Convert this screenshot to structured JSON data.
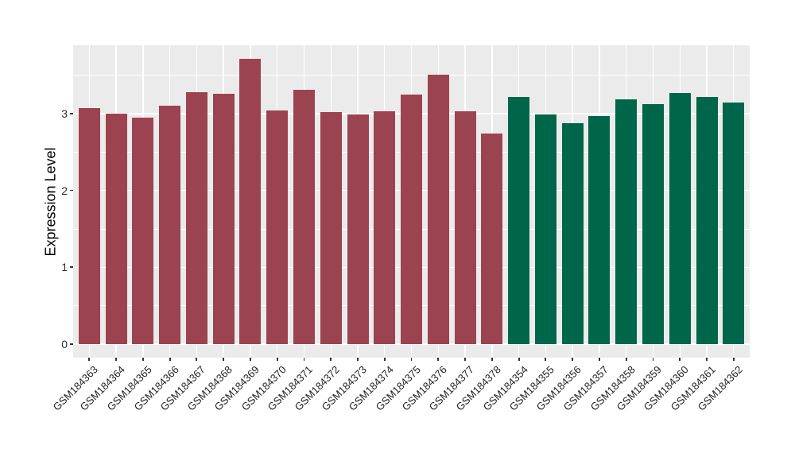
{
  "chart_data": {
    "type": "bar",
    "title": "",
    "xlabel": "",
    "ylabel": "Expression Level",
    "ylim": [
      0,
      3.89
    ],
    "yticks": [
      0,
      1,
      2,
      3
    ],
    "yticks_minor": [
      0.5,
      1.5,
      2.5,
      3.5
    ],
    "grid": "white major and minor gridlines on gray panel",
    "legend": "none",
    "panel_background": "#EBEBEB",
    "grid_color": "#FFFFFF",
    "group_colors": [
      "#9C4351",
      "#00664A"
    ],
    "categories": [
      "GSM184363",
      "GSM184364",
      "GSM184365",
      "GSM184366",
      "GSM184367",
      "GSM184368",
      "GSM184369",
      "GSM184370",
      "GSM184371",
      "GSM184372",
      "GSM184373",
      "GSM184374",
      "GSM184375",
      "GSM184376",
      "GSM184377",
      "GSM184378",
      "GSM184354",
      "GSM184355",
      "GSM184356",
      "GSM184357",
      "GSM184358",
      "GSM184359",
      "GSM184360",
      "GSM184361",
      "GSM184362"
    ],
    "values": [
      3.07,
      3.0,
      2.95,
      3.1,
      3.28,
      3.26,
      3.71,
      3.04,
      3.31,
      3.02,
      2.99,
      3.03,
      3.25,
      3.51,
      3.03,
      2.74,
      3.22,
      2.99,
      2.87,
      2.97,
      3.19,
      3.12,
      3.27,
      3.22,
      3.14
    ],
    "bar_groups": [
      0,
      0,
      0,
      0,
      0,
      0,
      0,
      0,
      0,
      0,
      0,
      0,
      0,
      0,
      0,
      0,
      1,
      1,
      1,
      1,
      1,
      1,
      1,
      1,
      1
    ]
  }
}
